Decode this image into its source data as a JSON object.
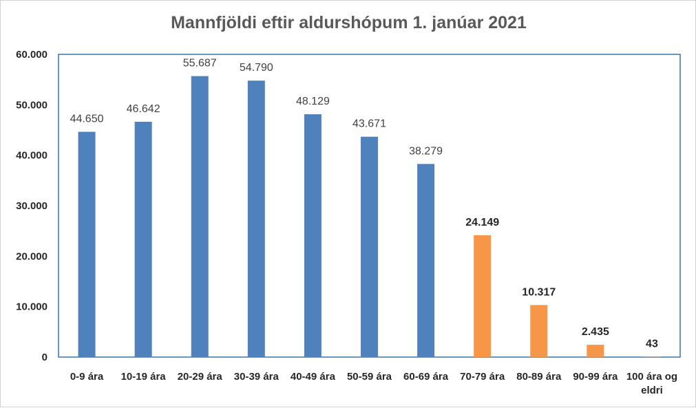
{
  "chart_data": {
    "type": "bar",
    "title": "Mannfjöldi eftir aldurshópum 1. janúar 2021",
    "xlabel": "",
    "ylabel": "",
    "ylim": [
      0,
      60000
    ],
    "y_ticks": [
      "0",
      "10.000",
      "20.000",
      "30.000",
      "40.000",
      "50.000",
      "60.000"
    ],
    "grid": false,
    "categories": [
      [
        "0-9 ára"
      ],
      [
        "10-19 ára"
      ],
      [
        "20-29 ára"
      ],
      [
        "30-39 ára"
      ],
      [
        "40-49 ára"
      ],
      [
        "50-59 ára"
      ],
      [
        "60-69 ára"
      ],
      [
        "70-79 ára"
      ],
      [
        "80-89 ára"
      ],
      [
        "90-99 ára"
      ],
      [
        "100 ára og",
        "eldri"
      ]
    ],
    "values": [
      44650,
      46642,
      55687,
      54790,
      48129,
      43671,
      38279,
      24149,
      10317,
      2435,
      43
    ],
    "data_labels": [
      "44.650",
      "46.642",
      "55.687",
      "54.790",
      "48.129",
      "43.671",
      "38.279",
      "24.149",
      "10.317",
      "2.435",
      "43"
    ],
    "bar_colors": [
      "#4f81bd",
      "#4f81bd",
      "#4f81bd",
      "#4f81bd",
      "#4f81bd",
      "#4f81bd",
      "#4f81bd",
      "#f79646",
      "#f79646",
      "#f79646",
      "#f79646"
    ],
    "label_bold": [
      false,
      false,
      false,
      false,
      false,
      false,
      false,
      true,
      true,
      true,
      true
    ],
    "frame_color": "#2e75b6"
  }
}
